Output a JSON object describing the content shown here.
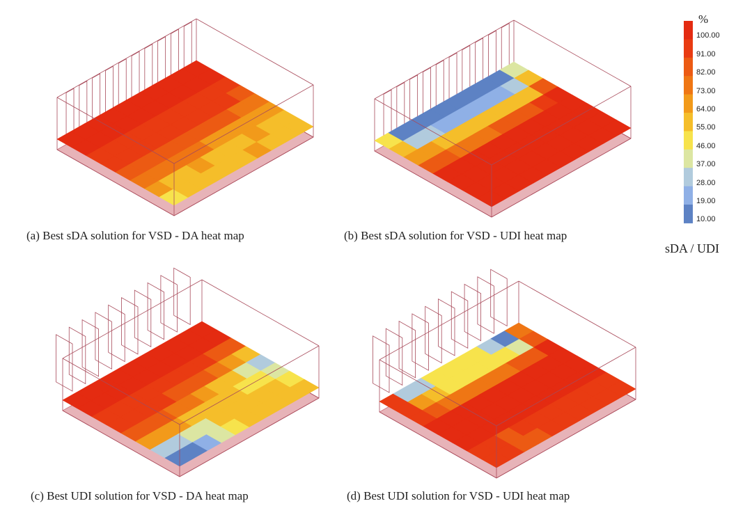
{
  "captions": {
    "a": "(a)  Best sDA solution for VSD - DA heat map",
    "b": "(b)  Best sDA solution for VSD - UDI heat map",
    "c": "(c)  Best UDI solution for VSD - DA heat map",
    "d": "(d)  Best UDI solution for VSD - UDI heat map"
  },
  "legend": {
    "unit": "%",
    "title": "sDA / UDI",
    "labels": [
      "100.00",
      "91.00",
      "82.00",
      "73.00",
      "64.00",
      "55.00",
      "46.00",
      "37.00",
      "28.00",
      "19.00",
      "10.00"
    ],
    "colors": [
      "#e42b11",
      "#e93b12",
      "#ec5a13",
      "#ef7614",
      "#f29a1a",
      "#f5be2a",
      "#f7e34c",
      "#dce6a2",
      "#b1cbdd",
      "#8fb0e6",
      "#5d82c4"
    ]
  },
  "colors": {
    "floor": "#e7b3b8",
    "lines": "#a84a5a"
  },
  "chart_data": [
    {
      "type": "heatmap",
      "panel": "a",
      "window_type": "flat-louvers",
      "rows_from": "window",
      "values": [
        [
          100,
          100,
          100,
          100,
          100,
          100,
          100,
          100,
          100,
          100
        ],
        [
          100,
          100,
          100,
          100,
          100,
          100,
          100,
          100,
          100,
          100
        ],
        [
          98,
          98,
          98,
          98,
          98,
          98,
          98,
          98,
          98,
          98
        ],
        [
          95,
          95,
          95,
          95,
          95,
          95,
          95,
          93,
          93,
          90
        ],
        [
          88,
          88,
          85,
          85,
          88,
          88,
          85,
          82,
          80,
          78
        ],
        [
          78,
          76,
          75,
          78,
          76,
          72,
          70,
          70,
          68,
          65
        ],
        [
          65,
          62,
          60,
          66,
          62,
          60,
          62,
          64,
          60,
          58
        ],
        [
          50,
          55,
          58,
          60,
          62,
          60,
          65,
          62,
          58,
          56
        ]
      ]
    },
    {
      "type": "heatmap",
      "panel": "b",
      "window_type": "flat-louvers",
      "rows_from": "window",
      "values": [
        [
          50,
          15,
          15,
          15,
          15,
          15,
          15,
          15,
          15,
          45
        ],
        [
          58,
          30,
          30,
          25,
          25,
          25,
          25,
          25,
          30,
          55
        ],
        [
          70,
          72,
          55,
          55,
          55,
          55,
          55,
          55,
          58,
          85
        ],
        [
          90,
          85,
          80,
          78,
          80,
          85,
          88,
          90,
          95,
          100
        ],
        [
          100,
          100,
          100,
          100,
          100,
          100,
          100,
          100,
          100,
          100
        ],
        [
          100,
          100,
          100,
          100,
          100,
          100,
          100,
          100,
          100,
          100
        ],
        [
          100,
          100,
          100,
          100,
          100,
          100,
          100,
          100,
          100,
          100
        ],
        [
          100,
          100,
          100,
          100,
          100,
          100,
          100,
          100,
          100,
          100
        ]
      ]
    },
    {
      "type": "heatmap",
      "panel": "c",
      "window_type": "vertical-fins",
      "rows_from": "window",
      "values": [
        [
          100,
          100,
          100,
          100,
          100,
          100,
          100,
          100,
          100,
          100
        ],
        [
          100,
          100,
          100,
          100,
          100,
          100,
          100,
          100,
          100,
          100
        ],
        [
          98,
          98,
          98,
          98,
          98,
          98,
          95,
          92,
          88,
          85
        ],
        [
          92,
          92,
          92,
          92,
          90,
          88,
          82,
          75,
          70,
          62
        ],
        [
          85,
          85,
          82,
          80,
          76,
          70,
          62,
          55,
          45,
          35
        ],
        [
          70,
          70,
          68,
          62,
          58,
          55,
          56,
          52,
          48,
          40
        ],
        [
          35,
          30,
          38,
          45,
          55,
          58,
          56,
          60,
          55,
          50
        ],
        [
          15,
          15,
          25,
          40,
          50,
          56,
          60,
          62,
          58,
          55
        ]
      ]
    },
    {
      "type": "heatmap",
      "panel": "d",
      "window_type": "vertical-fins",
      "rows_from": "window",
      "values": [
        [
          95,
          35,
          35,
          48,
          48,
          48,
          48,
          30,
          15,
          75
        ],
        [
          92,
          70,
          60,
          52,
          52,
          52,
          52,
          52,
          45,
          85
        ],
        [
          95,
          88,
          80,
          80,
          80,
          80,
          80,
          85,
          90,
          100
        ],
        [
          100,
          100,
          100,
          100,
          100,
          100,
          100,
          100,
          100,
          100
        ],
        [
          100,
          100,
          100,
          100,
          100,
          100,
          100,
          100,
          100,
          100
        ],
        [
          100,
          100,
          100,
          100,
          100,
          100,
          100,
          100,
          100,
          100
        ],
        [
          96,
          92,
          88,
          96,
          96,
          96,
          96,
          96,
          96,
          96
        ],
        [
          96,
          96,
          85,
          85,
          92,
          96,
          96,
          96,
          96,
          96
        ]
      ]
    }
  ]
}
